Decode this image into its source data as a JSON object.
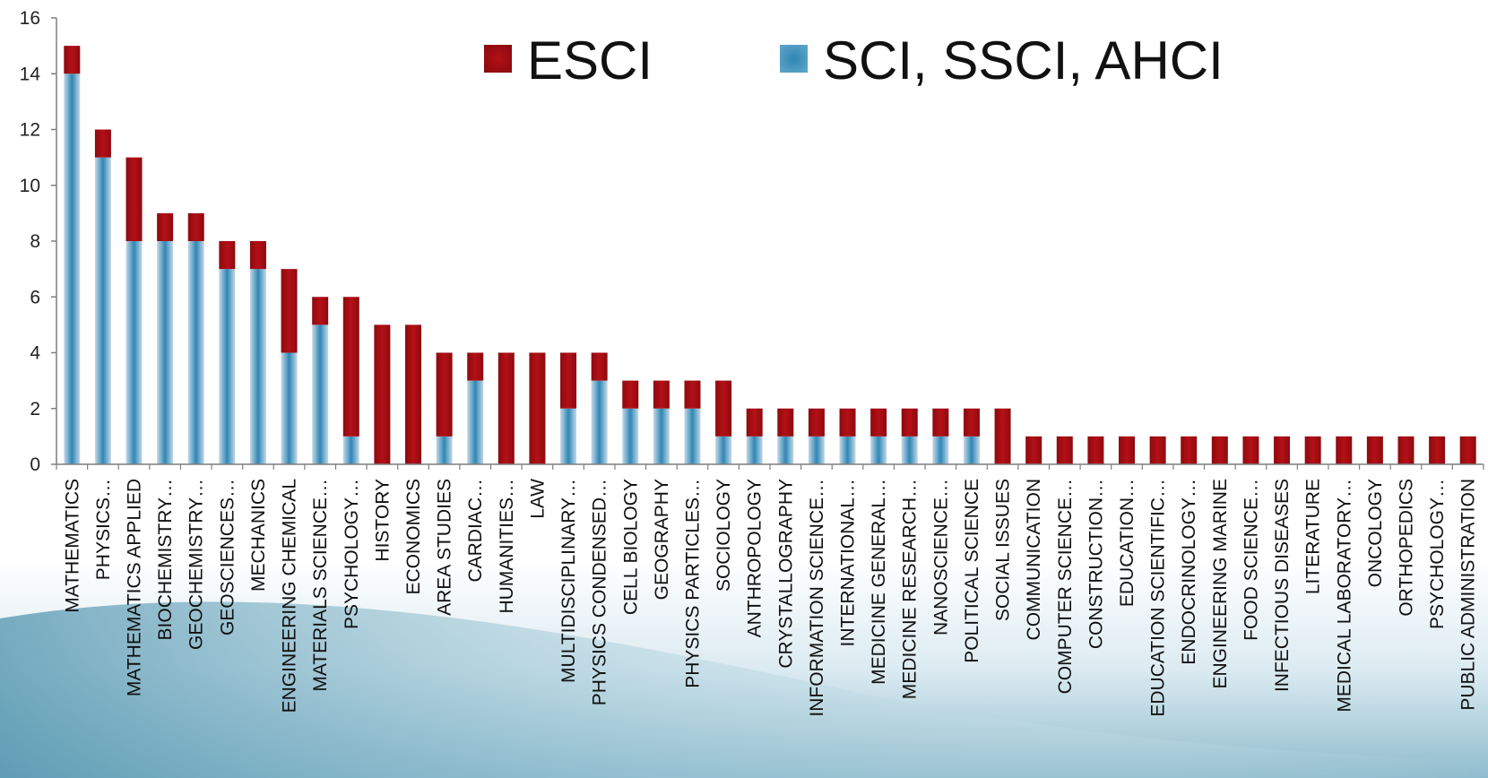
{
  "colors": {
    "esci": "#a80c12",
    "sci": "#2f86b4"
  },
  "chart_data": {
    "type": "bar",
    "stacked": true,
    "ylim": [
      0,
      16
    ],
    "yticks": [
      0,
      2,
      4,
      6,
      8,
      10,
      12,
      14,
      16
    ],
    "legend_position": "top-right",
    "grid": false,
    "categories": [
      "MATHEMATICS",
      "PHYSICS…",
      "MATHEMATICS APPLIED",
      "BIOCHEMISTRY…",
      "GEOCHEMISTRY…",
      "GEOSCIENCES…",
      "MECHANICS",
      "ENGINEERING CHEMICAL",
      "MATERIALS SCIENCE…",
      "PSYCHOLOGY…",
      "HISTORY",
      "ECONOMICS",
      "AREA STUDIES",
      "CARDIAC…",
      "HUMANITIES…",
      "LAW",
      "MULTIDISCIPLINARY…",
      "PHYSICS CONDENSED…",
      "CELL BIOLOGY",
      "GEOGRAPHY",
      "PHYSICS PARTICLES…",
      "SOCIOLOGY",
      "ANTHROPOLOGY",
      "CRYSTALLOGRAPHY",
      "INFORMATION SCIENCE…",
      "INTERNATIONAL…",
      "MEDICINE GENERAL…",
      "MEDICINE RESEARCH…",
      "NANOSCIENCE…",
      "POLITICAL SCIENCE",
      "SOCIAL ISSUES",
      "COMMUNICATION",
      "COMPUTER SCIENCE…",
      "CONSTRUCTION…",
      "EDUCATION…",
      "EDUCATION SCIENTIFIC…",
      "ENDOCRINOLOGY…",
      "ENGINEERING MARINE",
      "FOOD SCIENCE…",
      "INFECTIOUS DISEASES",
      "LITERATURE",
      "MEDICAL LABORATORY…",
      "ONCOLOGY",
      "ORTHOPEDICS",
      "PSYCHOLOGY…",
      "PUBLIC ADMINISTRATION"
    ],
    "series": [
      {
        "name": "SCI, SSCI, AHCI",
        "values": [
          14,
          11,
          8,
          8,
          8,
          7,
          7,
          4,
          5,
          1,
          0,
          0,
          1,
          3,
          0,
          0,
          2,
          3,
          2,
          2,
          2,
          1,
          1,
          1,
          1,
          1,
          1,
          1,
          1,
          1,
          0,
          0,
          0,
          0,
          0,
          0,
          0,
          0,
          0,
          0,
          0,
          0,
          0,
          0,
          0,
          0
        ]
      },
      {
        "name": "ESCI",
        "values": [
          1,
          1,
          3,
          1,
          1,
          1,
          1,
          3,
          1,
          5,
          5,
          5,
          3,
          1,
          4,
          4,
          2,
          1,
          1,
          1,
          1,
          2,
          1,
          1,
          1,
          1,
          1,
          1,
          1,
          1,
          2,
          1,
          1,
          1,
          1,
          1,
          1,
          1,
          1,
          1,
          1,
          1,
          1,
          1,
          1,
          1
        ]
      }
    ]
  }
}
